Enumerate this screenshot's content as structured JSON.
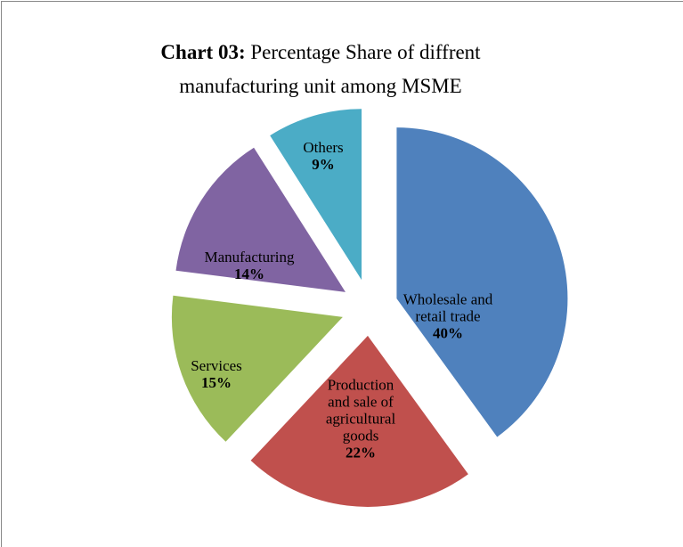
{
  "chart_data": {
    "type": "pie",
    "title_label": "Chart 03:",
    "title": "Percentage Share of diffrent manufacturing unit among MSME",
    "categories": [
      "Wholesale and retail trade",
      "Production and sale of agricultural goods",
      "Services",
      "Manufacturing",
      "Others"
    ],
    "values": [
      40,
      22,
      15,
      14,
      9
    ],
    "value_labels": [
      "40%",
      "22%",
      "15%",
      "14%",
      "9%"
    ],
    "colors": [
      "#4f81bd",
      "#c0504d",
      "#9bbb59",
      "#8064a2",
      "#4bacc6"
    ]
  }
}
